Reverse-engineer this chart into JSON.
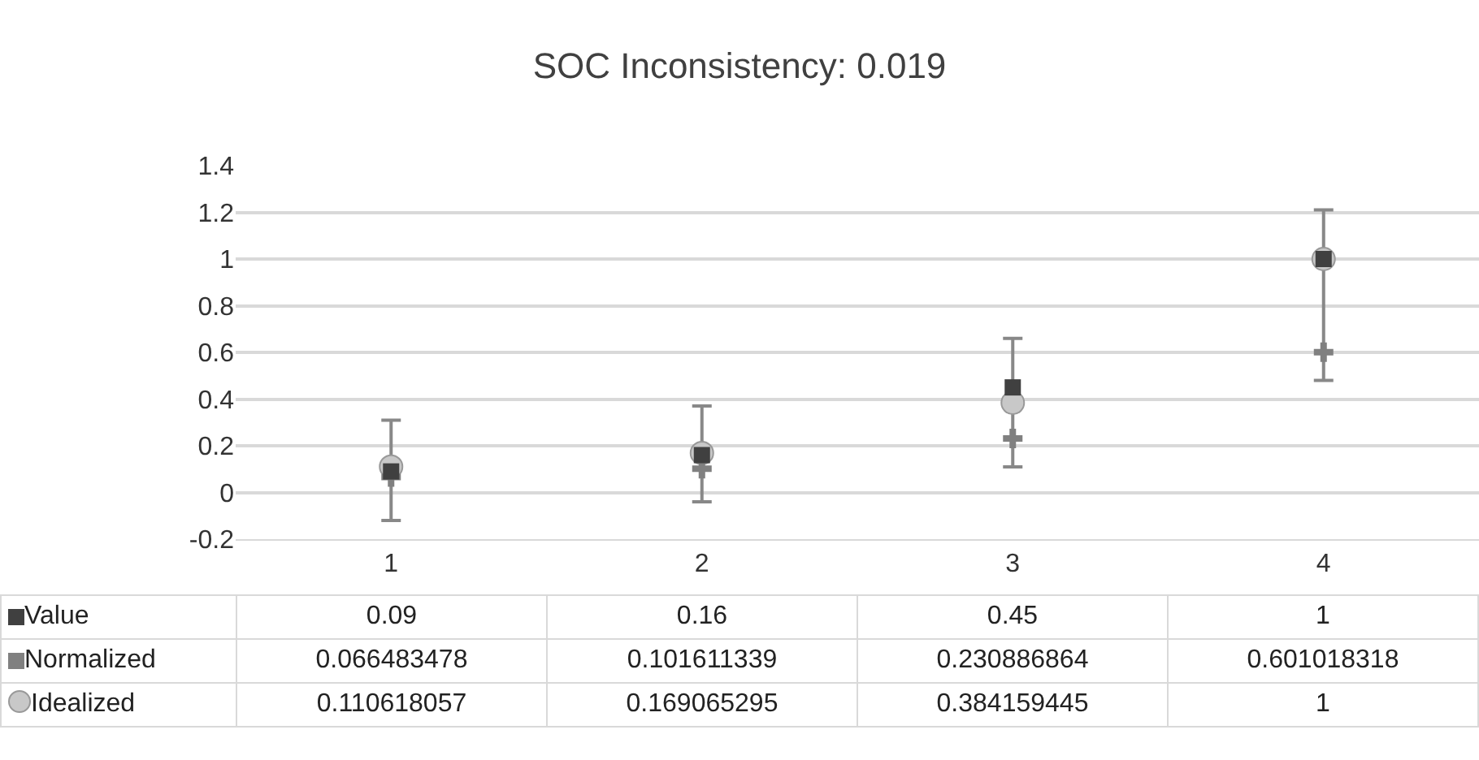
{
  "chart_data": {
    "type": "scatter",
    "title": "SOC Inconsistency: 0.019",
    "categories": [
      "1",
      "2",
      "3",
      "4"
    ],
    "series": [
      {
        "name": "Value",
        "marker": "square",
        "color": "#404040",
        "values": [
          0.09,
          0.16,
          0.45,
          1
        ]
      },
      {
        "name": "Normalized",
        "marker": "cross",
        "color": "#808080",
        "values": [
          0.066483478,
          0.101611339,
          0.230886864,
          0.601018318
        ]
      },
      {
        "name": "Idealized",
        "marker": "circle",
        "color": "#c8c8c8",
        "values": [
          0.110618057,
          0.169065295,
          0.384159445,
          1
        ],
        "errors": [
          [
            -0.12,
            0.31
          ],
          [
            -0.04,
            0.37
          ],
          [
            0.11,
            0.66
          ],
          [
            0.48,
            1.21
          ]
        ]
      }
    ],
    "ylim": [
      -0.2,
      1.4
    ],
    "yticks": [
      -0.2,
      0,
      0.2,
      0.4,
      0.6,
      0.8,
      1,
      1.2,
      1.4
    ],
    "grid": "y",
    "legend": "bottom",
    "data_labels": true
  }
}
